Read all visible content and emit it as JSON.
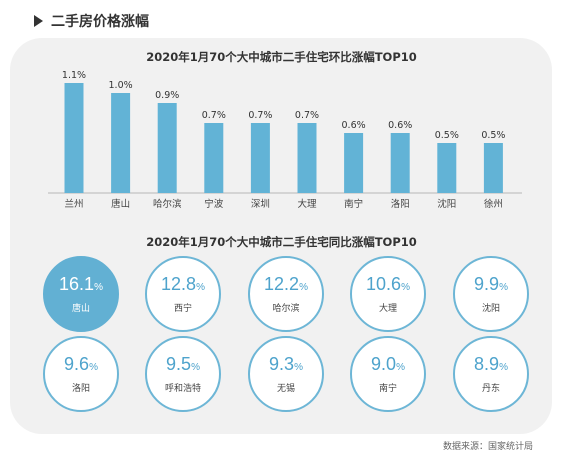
{
  "section": {
    "title": "二手房价格涨幅"
  },
  "colors": {
    "bar": "#62b3d6",
    "circle_border": "#6db6d6",
    "highlight": "#62b0d3",
    "panel": "#f1f1f1"
  },
  "chart_data": [
    {
      "type": "bar",
      "title": "2020年1月70个大中城市二手住宅环比涨幅TOP10",
      "categories": [
        "兰州",
        "唐山",
        "哈尔滨",
        "宁波",
        "深圳",
        "大理",
        "南宁",
        "洛阳",
        "沈阳",
        "徐州"
      ],
      "values": [
        1.1,
        1.0,
        0.9,
        0.7,
        0.7,
        0.7,
        0.6,
        0.6,
        0.5,
        0.5
      ],
      "labels": [
        "1.1%",
        "1.0%",
        "0.9%",
        "0.7%",
        "0.7%",
        "0.7%",
        "0.6%",
        "0.6%",
        "0.5%",
        "0.5%"
      ],
      "ylim": [
        0,
        1.1
      ]
    },
    {
      "type": "table",
      "title": "2020年1月70个大中城市二手住宅同比涨幅TOP10",
      "items": [
        {
          "value": "16.1",
          "unit": "%",
          "city": "唐山",
          "highlight": true
        },
        {
          "value": "12.8",
          "unit": "%",
          "city": "西宁"
        },
        {
          "value": "12.2",
          "unit": "%",
          "city": "哈尔滨"
        },
        {
          "value": "10.6",
          "unit": "%",
          "city": "大理"
        },
        {
          "value": "9.9",
          "unit": "%",
          "city": "沈阳"
        },
        {
          "value": "9.6",
          "unit": "%",
          "city": "洛阳"
        },
        {
          "value": "9.5",
          "unit": "%",
          "city": "呼和浩特"
        },
        {
          "value": "9.3",
          "unit": "%",
          "city": "无锡"
        },
        {
          "value": "9.0",
          "unit": "%",
          "city": "南宁"
        },
        {
          "value": "8.9",
          "unit": "%",
          "city": "丹东"
        }
      ]
    }
  ],
  "source": "数据来源：国家统计局"
}
